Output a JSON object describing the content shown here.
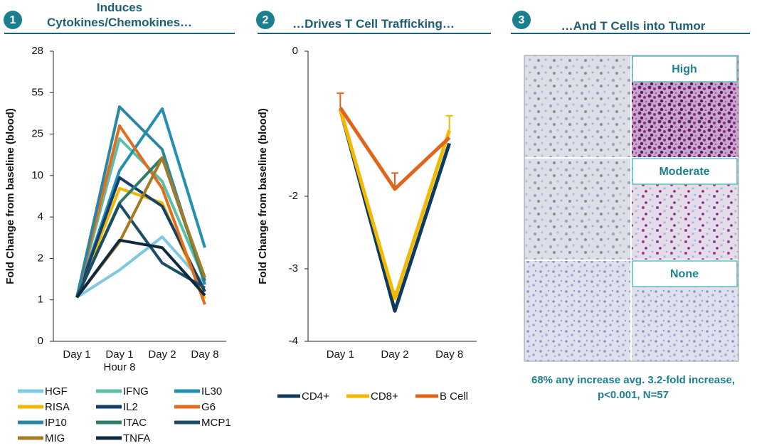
{
  "chart_data": [
    {
      "type": "line",
      "number": "1",
      "title": "Induces Cytokines/Chemokines…",
      "y_label": "Fold Change from baseline (blood)",
      "categories": [
        "Day 1",
        "Day 1 Hour 8",
        "Day 2",
        "Day 8"
      ],
      "ylim": [
        0,
        7
      ],
      "yticks": [
        0,
        1,
        2,
        {
          "value": 3,
          "label": "4"
        },
        {
          "value": 4,
          "label": "10"
        },
        {
          "value": 5,
          "label": "25"
        },
        {
          "value": 6,
          "label": "55"
        },
        {
          "value": 7,
          "label": "28"
        }
      ],
      "legend": "bottom",
      "series": [
        {
          "name": "HGF",
          "color": "#7ec8e3",
          "values": [
            1.06,
            1.72,
            2.52,
            1.37
          ]
        },
        {
          "name": "IFNG",
          "color": "#5bbfa8",
          "values": [
            1.06,
            4.89,
            3.86,
            1.46
          ]
        },
        {
          "name": "IL30",
          "color": "#2390b2",
          "values": [
            1.06,
            4.12,
            5.61,
            2.26
          ]
        },
        {
          "name": "RISA",
          "color": "#f2b705",
          "values": [
            1.06,
            3.69,
            3.34,
            1.03
          ]
        },
        {
          "name": "IL2",
          "color": "#123f6b",
          "values": [
            1.06,
            3.95,
            3.26,
            1.2
          ]
        },
        {
          "name": "G6",
          "color": "#e36c1e",
          "values": [
            1.06,
            5.2,
            3.69,
            0.89
          ]
        },
        {
          "name": "IP10",
          "color": "#2a87a3",
          "values": [
            1.06,
            5.66,
            4.63,
            1.37
          ]
        },
        {
          "name": "ITAC",
          "color": "#2e7d6b",
          "values": [
            1.06,
            3.34,
            4.43,
            1.46
          ]
        },
        {
          "name": "MCP1",
          "color": "#1b4e66",
          "values": [
            1.06,
            3.31,
            1.89,
            1.29
          ]
        },
        {
          "name": "MIG",
          "color": "#a67a22",
          "values": [
            1.06,
            2.4,
            4.43,
            1.54
          ]
        },
        {
          "name": "TNFA",
          "color": "#0d2a40",
          "values": [
            1.06,
            2.44,
            2.26,
            1.11
          ]
        }
      ]
    },
    {
      "type": "line",
      "number": "2",
      "title": "…Drives T Cell Trafficking…",
      "y_label": "Fold Change from baseline (blood)",
      "categories": [
        "Day 1",
        "Day 2",
        "Day 8"
      ],
      "ylim": [
        -4,
        0
      ],
      "yticks": [
        0,
        -2,
        -3,
        -4
      ],
      "legend": "bottom",
      "series": [
        {
          "name": "CD4+",
          "color": "#0d3b5e",
          "values": [
            -0.8,
            -3.58,
            -1.27
          ]
        },
        {
          "name": "CD8+",
          "color": "#f5b800",
          "values": [
            -0.8,
            -3.41,
            -1.09
          ],
          "errors": [
            null,
            0.1,
            0.2
          ]
        },
        {
          "name": "B Cell",
          "color": "#e2641b",
          "values": [
            -0.78,
            -1.9,
            -1.19
          ],
          "errors": [
            0.2,
            0.22,
            null
          ]
        }
      ]
    }
  ],
  "panel": {
    "number": "3",
    "title": "…And T Cells into Tumor",
    "labels": [
      "High",
      "Moderate",
      "None"
    ],
    "caption": "68% any increase avg. 3.2-fold increase, p<0.001, N=57"
  }
}
